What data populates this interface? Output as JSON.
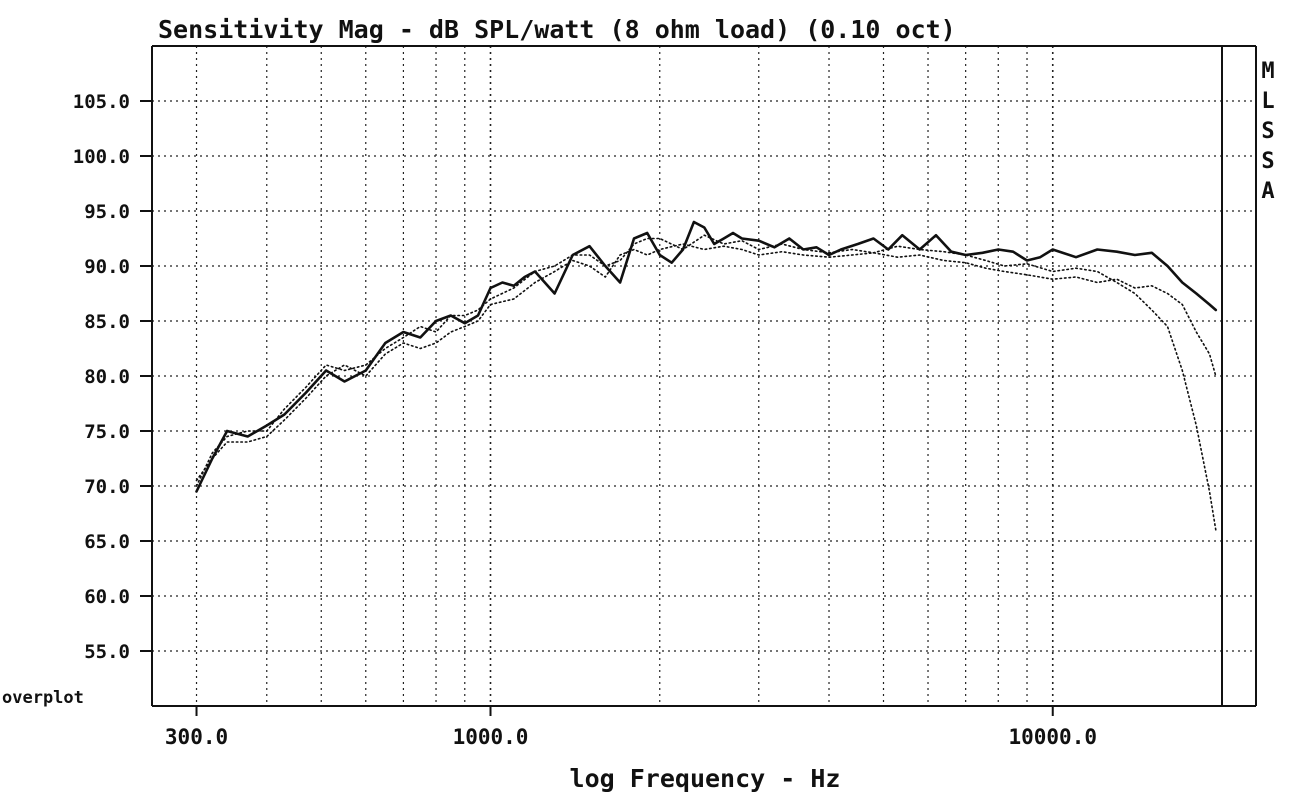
{
  "chart_data": {
    "type": "line",
    "title": "Sensitivity Mag - dB SPL/watt (8 ohm load) (0.10 oct)",
    "xlabel": "log Frequency - Hz",
    "ylabel": "",
    "x_scale": "log",
    "xlim": [
      250,
      20000
    ],
    "ylim": [
      50,
      110
    ],
    "grid": true,
    "y_ticks": [
      "105.0",
      "100.0",
      "95.0",
      "90.0",
      "85.0",
      "80.0",
      "75.0",
      "70.0",
      "65.0",
      "60.0",
      "55.0"
    ],
    "y_tick_values": [
      105,
      100,
      95,
      90,
      85,
      80,
      75,
      70,
      65,
      60,
      55
    ],
    "x_ticks": [
      "300.0",
      "1000.0",
      "10000.0"
    ],
    "x_tick_values": [
      300,
      1000,
      10000
    ],
    "side_label": [
      "M",
      "L",
      "S",
      "S",
      "A"
    ],
    "corner_label": "overplot",
    "series": [
      {
        "style": "solid",
        "x": [
          300,
          320,
          340,
          370,
          400,
          430,
          470,
          510,
          550,
          600,
          650,
          700,
          750,
          800,
          850,
          900,
          950,
          1000,
          1050,
          1100,
          1150,
          1200,
          1300,
          1400,
          1500,
          1600,
          1700,
          1800,
          1900,
          2000,
          2100,
          2200,
          2300,
          2400,
          2500,
          2600,
          2700,
          2800,
          3000,
          3200,
          3400,
          3600,
          3800,
          4000,
          4200,
          4500,
          4800,
          5100,
          5400,
          5800,
          6200,
          6600,
          7000,
          7500,
          8000,
          8500,
          9000,
          9500,
          10000,
          11000,
          12000,
          13000,
          14000,
          15000,
          16000,
          17000,
          18000,
          19000,
          19500
        ],
        "y": [
          69.5,
          72.5,
          75.0,
          74.5,
          75.5,
          76.5,
          78.5,
          80.5,
          79.5,
          80.5,
          83.0,
          84.0,
          83.5,
          85.0,
          85.5,
          84.8,
          85.5,
          88.0,
          88.5,
          88.2,
          89.0,
          89.5,
          87.5,
          91.0,
          91.8,
          90.0,
          88.5,
          92.5,
          93.0,
          91.0,
          90.3,
          91.5,
          94.0,
          93.5,
          92.0,
          92.5,
          93.0,
          92.5,
          92.3,
          91.7,
          92.5,
          91.5,
          91.7,
          91.0,
          91.5,
          92.0,
          92.5,
          91.5,
          92.8,
          91.5,
          92.8,
          91.3,
          91.0,
          91.2,
          91.5,
          91.3,
          90.5,
          90.8,
          91.5,
          90.8,
          91.5,
          91.3,
          91.0,
          91.2,
          90.0,
          88.5,
          87.5,
          86.5,
          86.0
        ]
      },
      {
        "style": "dotted",
        "x": [
          300,
          320,
          340,
          370,
          400,
          430,
          470,
          510,
          550,
          600,
          650,
          700,
          750,
          800,
          850,
          900,
          950,
          1000,
          1100,
          1200,
          1300,
          1400,
          1500,
          1600,
          1700,
          1800,
          1900,
          2000,
          2200,
          2400,
          2600,
          2800,
          3000,
          3300,
          3600,
          4000,
          4400,
          4800,
          5300,
          5800,
          6400,
          7000,
          7600,
          8200,
          9000,
          10000,
          11000,
          12000,
          13000,
          14000,
          15000,
          16000,
          17000,
          18000,
          19000,
          19500
        ],
        "y": [
          70.0,
          73.0,
          74.5,
          75.0,
          75.0,
          77.0,
          79.0,
          81.0,
          80.5,
          81.0,
          82.5,
          83.5,
          84.5,
          84.0,
          85.5,
          85.5,
          86.0,
          87.0,
          88.0,
          89.5,
          90.0,
          91.0,
          91.0,
          90.0,
          90.5,
          92.0,
          92.5,
          92.5,
          91.5,
          92.8,
          92.0,
          92.3,
          91.5,
          92.0,
          91.5,
          91.2,
          91.5,
          91.2,
          91.8,
          91.5,
          91.3,
          91.0,
          90.5,
          90.0,
          90.2,
          89.5,
          89.8,
          89.5,
          88.5,
          87.5,
          86.0,
          84.5,
          80.5,
          75.5,
          69.5,
          66.0
        ]
      },
      {
        "style": "dotted",
        "x": [
          300,
          320,
          340,
          370,
          400,
          430,
          470,
          510,
          550,
          600,
          650,
          700,
          750,
          800,
          850,
          900,
          950,
          1000,
          1100,
          1200,
          1300,
          1400,
          1500,
          1600,
          1700,
          1800,
          1900,
          2000,
          2200,
          2400,
          2600,
          2800,
          3000,
          3300,
          3600,
          4000,
          4400,
          4800,
          5300,
          5800,
          6400,
          7000,
          7600,
          8200,
          9000,
          10000,
          11000,
          12000,
          13000,
          14000,
          15000,
          16000,
          17000,
          18000,
          19000,
          19500
        ],
        "y": [
          70.5,
          72.5,
          74.0,
          74.0,
          74.5,
          76.0,
          78.0,
          80.0,
          81.0,
          80.0,
          82.0,
          83.0,
          82.5,
          83.0,
          84.0,
          84.5,
          85.0,
          86.5,
          87.0,
          88.5,
          89.5,
          90.5,
          90.0,
          89.0,
          91.0,
          91.5,
          91.0,
          91.5,
          92.0,
          91.5,
          91.8,
          91.5,
          91.0,
          91.3,
          91.0,
          90.8,
          91.0,
          91.2,
          90.8,
          91.0,
          90.5,
          90.3,
          89.8,
          89.5,
          89.2,
          88.8,
          89.0,
          88.5,
          88.8,
          88.0,
          88.2,
          87.5,
          86.5,
          84.0,
          82.0,
          80.0
        ]
      }
    ]
  }
}
